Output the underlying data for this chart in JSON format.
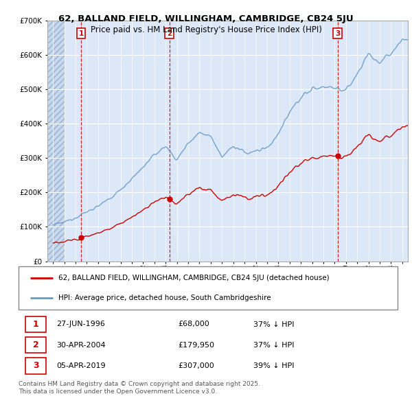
{
  "title_line1": "62, BALLAND FIELD, WILLINGHAM, CAMBRIDGE, CB24 5JU",
  "title_line2": "Price paid vs. HM Land Registry's House Price Index (HPI)",
  "legend_label_red": "62, BALLAND FIELD, WILLINGHAM, CAMBRIDGE, CB24 5JU (detached house)",
  "legend_label_blue": "HPI: Average price, detached house, South Cambridgeshire",
  "transactions": [
    {
      "num": 1,
      "date": "27-JUN-1996",
      "price": "£68,000",
      "pct": "37% ↓ HPI",
      "year": 1996.49
    },
    {
      "num": 2,
      "date": "30-APR-2004",
      "price": "£179,950",
      "pct": "37% ↓ HPI",
      "year": 2004.33
    },
    {
      "num": 3,
      "date": "05-APR-2019",
      "price": "£307,000",
      "pct": "39% ↓ HPI",
      "year": 2019.26
    }
  ],
  "sale_prices": [
    68000,
    179950,
    307000
  ],
  "sale_years": [
    1996.49,
    2004.33,
    2019.26
  ],
  "footer": "Contains HM Land Registry data © Crown copyright and database right 2025.\nThis data is licensed under the Open Government Licence v3.0.",
  "ylim": [
    0,
    700000
  ],
  "xlim_start": 1993.5,
  "xlim_end": 2025.5,
  "plot_bg_color": "#dce8f8",
  "hatch_color": "#c8d8ee",
  "red_color": "#cc0000",
  "blue_color": "#6699cc",
  "hatch_end": 1995.0
}
